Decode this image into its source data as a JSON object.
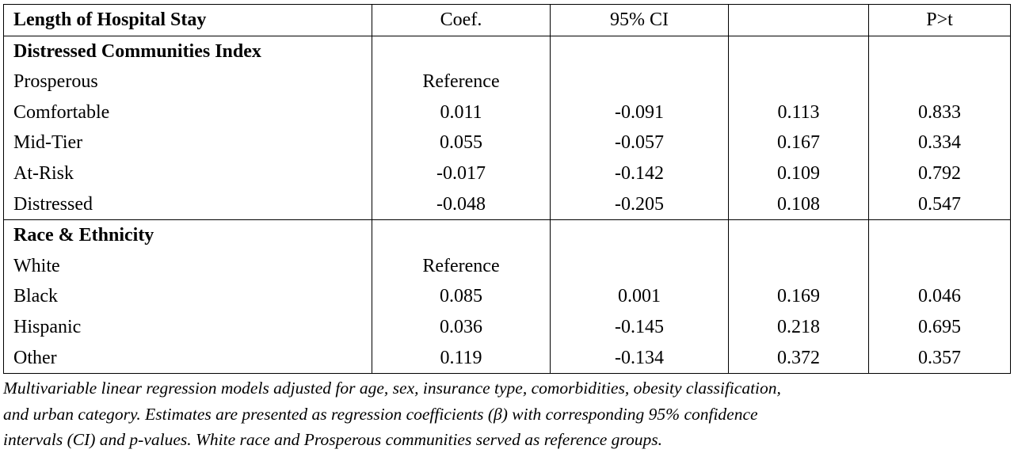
{
  "table": {
    "header": [
      "Length of Hospital Stay",
      "Coef.",
      "95% CI",
      "",
      "P>t"
    ],
    "sections": [
      {
        "title": "Distressed Communities Index",
        "rows": [
          [
            "Prosperous",
            "Reference",
            "",
            "",
            ""
          ],
          [
            "Comfortable",
            "0.011",
            "-0.091",
            "0.113",
            "0.833"
          ],
          [
            "Mid-Tier",
            "0.055",
            "-0.057",
            "0.167",
            "0.334"
          ],
          [
            "At-Risk",
            "-0.017",
            "-0.142",
            "0.109",
            "0.792"
          ],
          [
            "Distressed",
            "-0.048",
            "-0.205",
            "0.108",
            "0.547"
          ]
        ]
      },
      {
        "title": "Race & Ethnicity",
        "rows": [
          [
            "White",
            "Reference",
            "",
            "",
            ""
          ],
          [
            "Black",
            "0.085",
            "0.001",
            "0.169",
            "0.046"
          ],
          [
            "Hispanic",
            "0.036",
            "-0.145",
            "0.218",
            "0.695"
          ],
          [
            "Other",
            "0.119",
            "-0.134",
            "0.372",
            "0.357"
          ]
        ]
      }
    ]
  },
  "footnote": [
    "Multivariable linear regression models adjusted for age, sex, insurance type, comorbidities, obesity classification,",
    "and urban category. Estimates are presented as regression coefficients (β) with corresponding 95% confidence",
    "intervals (CI) and p-values. White race and Prosperous communities served as reference groups."
  ]
}
